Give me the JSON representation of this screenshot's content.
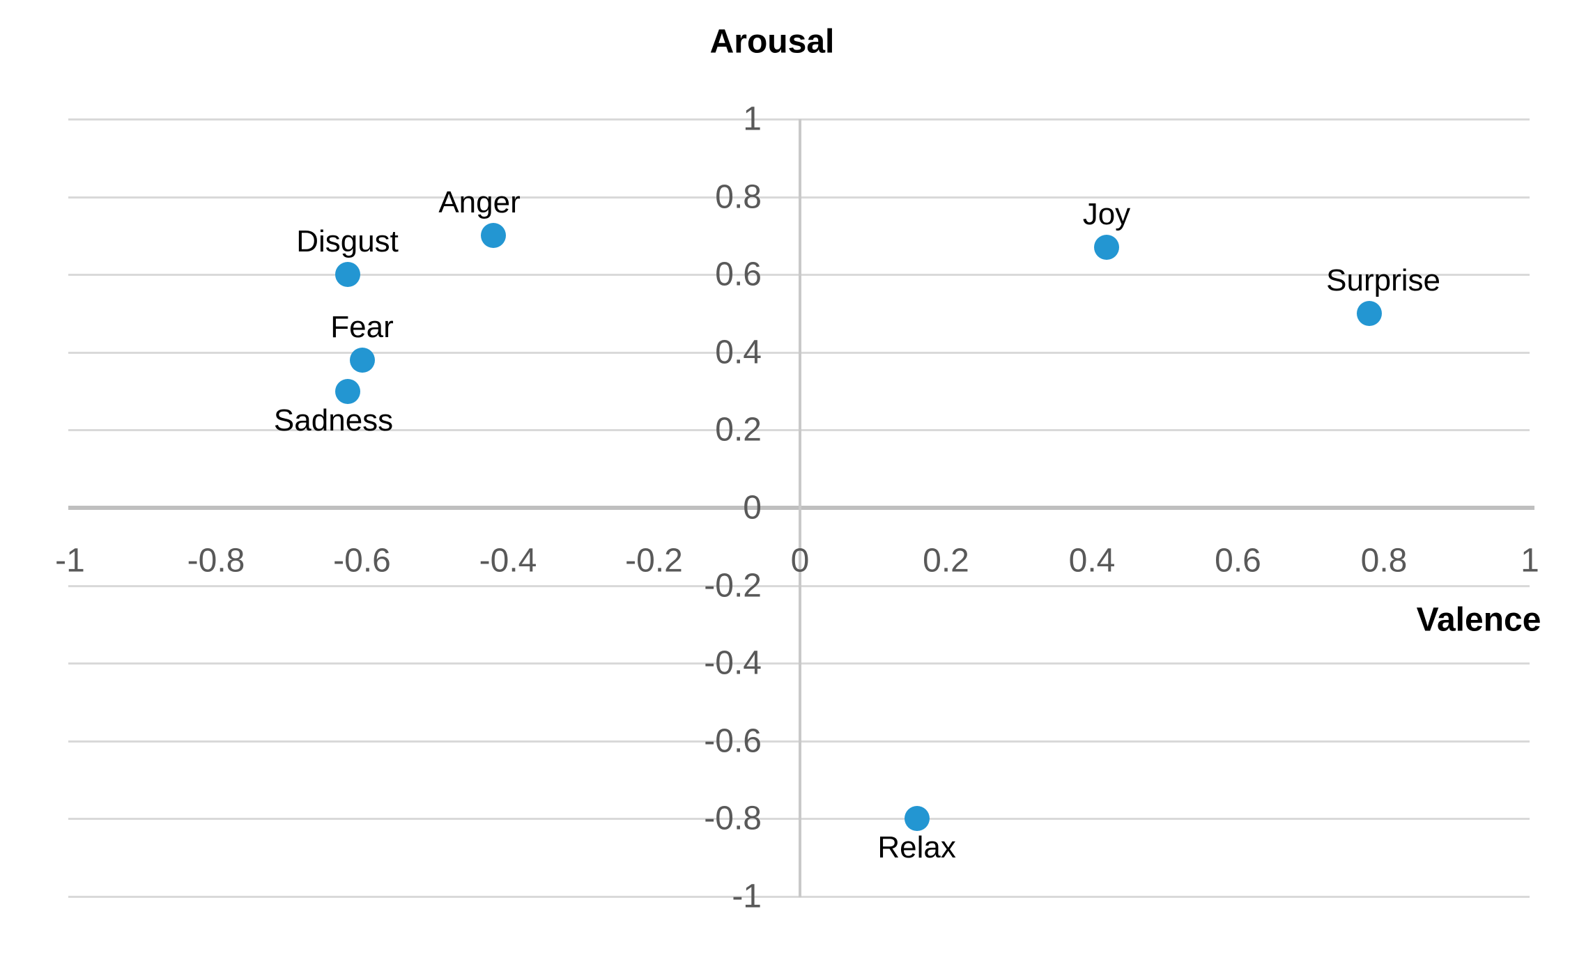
{
  "chart_data": {
    "type": "scatter",
    "title": "",
    "y_axis_title": "Arousal",
    "x_axis_title": "Valence",
    "xlabel": "Valence",
    "ylabel": "Arousal",
    "xlim": [
      -1,
      1
    ],
    "ylim": [
      -1,
      1
    ],
    "tick_step": 0.2,
    "grid": "horizontal-only",
    "x_ticks": [
      "-1",
      "-0.8",
      "-0.6",
      "-0.4",
      "-0.2",
      "0",
      "0.2",
      "0.4",
      "0.6",
      "0.8",
      "1"
    ],
    "y_ticks": [
      "1",
      "0.8",
      "0.6",
      "0.4",
      "0.2",
      "0",
      "-0.2",
      "-0.4",
      "-0.6",
      "-0.8",
      "-1"
    ],
    "marker_color": "#2396d2",
    "gridline_color": "#d9d9d9",
    "h_axis_color": "#bfbfbf",
    "v_axis_color": "#c9c9c9",
    "tick_label_color": "#595959",
    "points": [
      {
        "label": "Anger",
        "valence": -0.42,
        "arousal": 0.7,
        "label_position": "above",
        "label_dx": -20
      },
      {
        "label": "Disgust",
        "valence": -0.62,
        "arousal": 0.6,
        "label_position": "above",
        "label_dx": 0
      },
      {
        "label": "Fear",
        "valence": -0.6,
        "arousal": 0.38,
        "label_position": "above",
        "label_dx": 0
      },
      {
        "label": "Sadness",
        "valence": -0.62,
        "arousal": 0.3,
        "label_position": "below",
        "label_dx": -20
      },
      {
        "label": "Joy",
        "valence": 0.42,
        "arousal": 0.67,
        "label_position": "above",
        "label_dx": 0
      },
      {
        "label": "Surprise",
        "valence": 0.78,
        "arousal": 0.5,
        "label_position": "above",
        "label_dx": 20
      },
      {
        "label": "Relax",
        "valence": 0.16,
        "arousal": -0.8,
        "label_position": "below",
        "label_dx": 0
      }
    ]
  }
}
